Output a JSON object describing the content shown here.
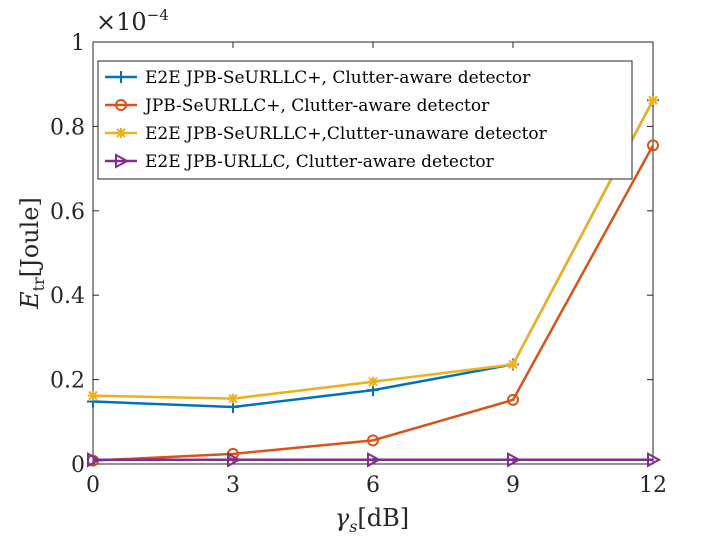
{
  "chart_data": {
    "type": "line",
    "x": [
      0,
      3,
      6,
      9,
      12
    ],
    "xlim": [
      0,
      12
    ],
    "ylim": [
      0,
      1
    ],
    "xticks": [
      0,
      3,
      6,
      9,
      12
    ],
    "yticks": [
      0,
      0.2,
      0.4,
      0.6,
      0.8,
      1
    ],
    "ytick_labels": [
      "0",
      "0.2",
      "0.4",
      "0.6",
      "0.8",
      "1"
    ],
    "xtick_labels": [
      "0",
      "3",
      "6",
      "9",
      "12"
    ],
    "exponent_label": "×10",
    "exponent_power": "−4",
    "xlabel": {
      "symbol": "γ",
      "subscript": "s",
      "unit": "[dB]"
    },
    "ylabel": {
      "symbol": "E",
      "subscript": "tr",
      "unit": "[Joule]"
    },
    "grid": false,
    "legend_position": "top-left",
    "series": [
      {
        "name": "E2E JPB-SeURLLC+, Clutter-aware detector",
        "color": "#0072BD",
        "marker": "plus",
        "values": [
          0.148,
          0.135,
          0.175,
          0.236,
          0.862
        ]
      },
      {
        "name": "JPB-SeURLLC+, Clutter-aware detector",
        "color": "#D95319",
        "marker": "circle",
        "values": [
          0.008,
          0.024,
          0.056,
          0.152,
          0.755
        ]
      },
      {
        "name": "E2E JPB-SeURLLC+,Clutter-unaware detector",
        "color": "#EDB120",
        "marker": "asterisk",
        "values": [
          0.162,
          0.155,
          0.195,
          0.236,
          0.862
        ]
      },
      {
        "name": "E2E JPB-URLLC, Clutter-aware detector",
        "color": "#7E2F8E",
        "marker": "triangle-right",
        "values": [
          0.01,
          0.01,
          0.01,
          0.01,
          0.01
        ]
      }
    ]
  }
}
